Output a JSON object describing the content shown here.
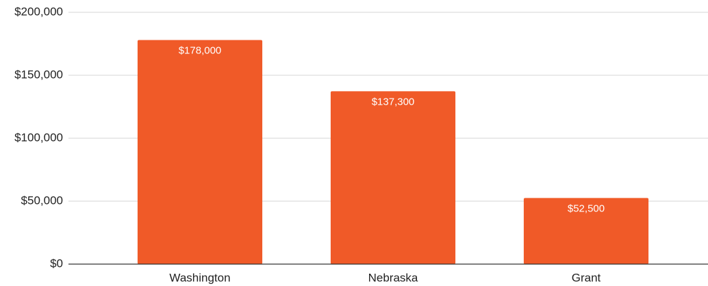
{
  "chart_data": {
    "type": "bar",
    "categories": [
      "Washington",
      "Nebraska",
      "Grant"
    ],
    "values": [
      178000,
      137300,
      52500
    ],
    "value_labels": [
      "$178,000",
      "$137,300",
      "$52,500"
    ],
    "color": "#f05a28",
    "ylim": [
      0,
      200000
    ],
    "yticks": [
      {
        "value": 0,
        "label": "$0"
      },
      {
        "value": 50000,
        "label": "$50,000"
      },
      {
        "value": 100000,
        "label": "$100,000"
      },
      {
        "value": 150000,
        "label": "$150,000"
      },
      {
        "value": 200000,
        "label": "$200,000"
      }
    ],
    "grid": true
  }
}
